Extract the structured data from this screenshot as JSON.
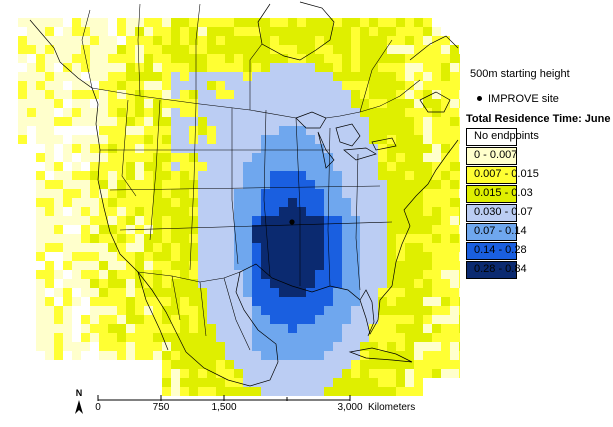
{
  "map": {
    "site": {
      "name": "IMPROVE site"
    },
    "scale_bar": {
      "ticks": [
        "0",
        "750",
        "1,500",
        "3,000"
      ],
      "unit": "Kilometers"
    },
    "north_label": "N"
  },
  "legend": {
    "starting_height": "500m starting height",
    "site_label": "IMPROVE site",
    "title": "Total Residence Time: June",
    "classes": [
      {
        "label": "No endpoints",
        "color": "#ffffff"
      },
      {
        "label": "0 - 0.007",
        "color": "#ffffcc"
      },
      {
        "label": "0.007 - 0.015",
        "color": "#ffff33"
      },
      {
        "label": "0.015 - 0.03",
        "color": "#dfef00"
      },
      {
        "label": "0.030 - 0.07",
        "color": "#bbcdf3"
      },
      {
        "label": "0.07 - 0.14",
        "color": "#6fa7ee"
      },
      {
        "label": "0.14 - 0.28",
        "color": "#1a5fe0"
      },
      {
        "label": "0.28 - 0.84",
        "color": "#0b2a70"
      }
    ]
  }
}
